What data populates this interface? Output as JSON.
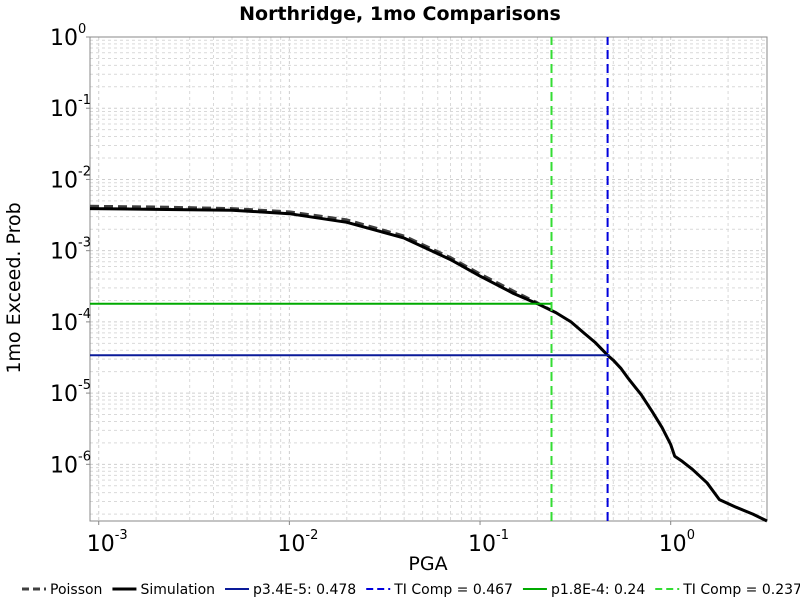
{
  "chart_data": {
    "type": "line",
    "title": "Northridge, 1mo Comparisons",
    "xlabel": "PGA",
    "ylabel": "1mo Exceed. Prob",
    "x_scale": "log",
    "y_scale": "log",
    "xlim": [
      0.0009,
      3.2
    ],
    "ylim": [
      1.6e-07,
      1
    ],
    "grid": true,
    "legend_position": "bottom",
    "x_ticks": [
      {
        "base": "10",
        "exp": "-3",
        "value": 0.001
      },
      {
        "base": "10",
        "exp": "-2",
        "value": 0.01
      },
      {
        "base": "10",
        "exp": "-1",
        "value": 0.1
      },
      {
        "base": "10",
        "exp": "0",
        "value": 1
      }
    ],
    "y_ticks": [
      {
        "base": "10",
        "exp": "0",
        "value": 1
      },
      {
        "base": "10",
        "exp": "-1",
        "value": 0.1
      },
      {
        "base": "10",
        "exp": "-2",
        "value": 0.01
      },
      {
        "base": "10",
        "exp": "-3",
        "value": 0.001
      },
      {
        "base": "10",
        "exp": "-4",
        "value": 0.0001
      },
      {
        "base": "10",
        "exp": "-5",
        "value": 1e-05
      },
      {
        "base": "10",
        "exp": "-6",
        "value": 1e-06
      }
    ],
    "series": [
      {
        "name": "Poisson",
        "color": "#404040",
        "style": "dashed",
        "x": [
          0.0009,
          0.002,
          0.005,
          0.01,
          0.02,
          0.04,
          0.07,
          0.1,
          0.15,
          0.2,
          0.24
        ],
        "y": [
          0.0042,
          0.0041,
          0.0039,
          0.0035,
          0.0027,
          0.0016,
          0.0008,
          0.00047,
          0.00027,
          0.000185,
          0.000142
        ]
      },
      {
        "name": "Simulation",
        "color": "#000000",
        "style": "solid",
        "x": [
          0.0009,
          0.002,
          0.005,
          0.01,
          0.02,
          0.04,
          0.07,
          0.1,
          0.15,
          0.2,
          0.25,
          0.3,
          0.35,
          0.4,
          0.467,
          0.5,
          0.55,
          0.6,
          0.7,
          0.8,
          0.9,
          1.0,
          1.05,
          1.15,
          1.3,
          1.55,
          1.8,
          2.2,
          2.7,
          3.2
        ],
        "y": [
          0.0039,
          0.0038,
          0.0037,
          0.0033,
          0.0025,
          0.0015,
          0.00075,
          0.00044,
          0.00025,
          0.00018,
          0.000135,
          0.0001,
          7e-05,
          5.2e-05,
          3.4e-05,
          2.9e-05,
          2.2e-05,
          1.6e-05,
          9.5e-06,
          5.5e-06,
          3.3e-06,
          1.9e-06,
          1.3e-06,
          1.1e-06,
          8.5e-07,
          5.5e-07,
          3.2e-07,
          2.5e-07,
          2e-07,
          1.6e-07
        ]
      },
      {
        "name": "p3.4E-5: 0.478",
        "color": "#0a1a99",
        "style": "solid",
        "x": [
          0.0009,
          0.478
        ],
        "y": [
          3.4e-05,
          3.4e-05
        ]
      },
      {
        "name": "TI Comp = 0.467",
        "color": "#0000dd",
        "style": "dashed",
        "x": [
          0.467,
          0.467
        ],
        "y": [
          1.6e-07,
          1
        ]
      },
      {
        "name": "p1.8E-4: 0.24",
        "color": "#00aa00",
        "style": "solid",
        "x": [
          0.0009,
          0.24
        ],
        "y": [
          0.00018,
          0.00018
        ]
      },
      {
        "name": "TI Comp = 0.237",
        "color": "#33dd33",
        "style": "dashed",
        "x": [
          0.237,
          0.237
        ],
        "y": [
          1.6e-07,
          1
        ]
      }
    ]
  }
}
